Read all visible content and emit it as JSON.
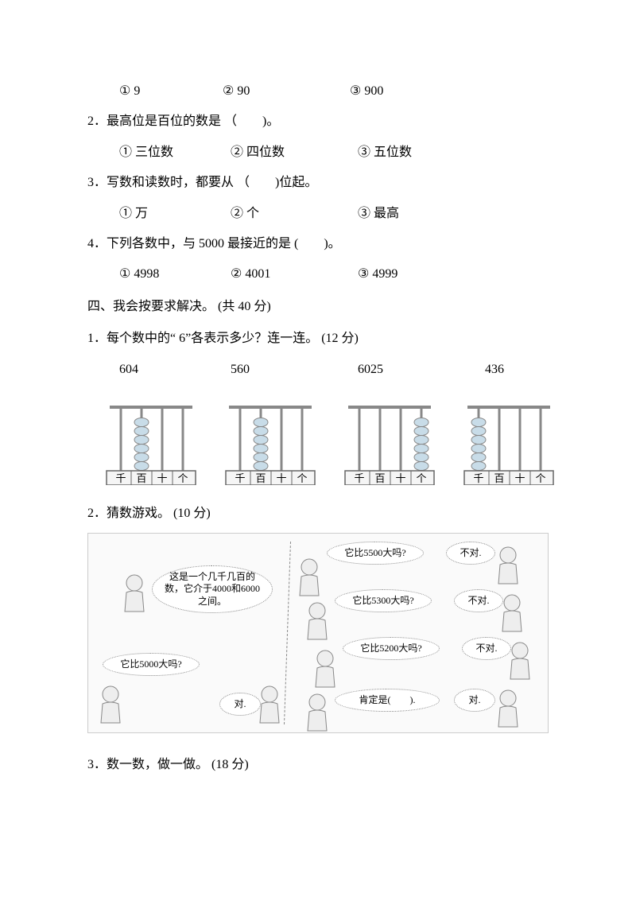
{
  "q1_choices": {
    "c1": "①  9",
    "c2": "②  90",
    "c3": "③  900",
    "w1": "130px",
    "w2": "160px",
    "w3": "120px"
  },
  "q2": {
    "text": "2．最高位是百位的数是 （　　)。",
    "choices": {
      "c1": "①  三位数",
      "c2": "②  四位数",
      "c3": "③  五位数",
      "w1": "140px",
      "w2": "160px",
      "w3": "120px"
    }
  },
  "q3": {
    "text": "3．写数和读数时，都要从 （　　)位起。",
    "choices": {
      "c1": "①  万",
      "c2": "②  个",
      "c3": "③  最高",
      "w1": "140px",
      "w2": "160px",
      "w3": "120px"
    }
  },
  "q4": {
    "text": "4．下列各数中，与   5000 最接近的是 (　　)。",
    "choices": {
      "c1": "①  4998",
      "c2": "②  4001",
      "c3": "③  4999",
      "w1": "140px",
      "w2": "160px",
      "w3": "120px"
    }
  },
  "section4": {
    "header": "四、我会按要求解决。  (共 40 分)"
  },
  "s4q1": {
    "text": "1．每个数中的“ 6”各表示多少？连一连。  (12 分)",
    "numbers": {
      "n1": "604",
      "n2": "560",
      "n3": "6025",
      "n4": "436",
      "w1": "140px",
      "w2": "160px",
      "w3": "160px",
      "w4": "60px"
    }
  },
  "abacus": {
    "labels": [
      "千",
      "百",
      "十",
      "个"
    ],
    "rod_color": "#888888",
    "bead_fill": "#c8dce8",
    "bead_stroke": "#888888",
    "frame_fill": "#f5f5f5",
    "frame_stroke": "#666666",
    "items": [
      {
        "beads": [
          0,
          6,
          0,
          0
        ]
      },
      {
        "beads": [
          0,
          6,
          0,
          0
        ]
      },
      {
        "beads": [
          0,
          0,
          0,
          6
        ]
      },
      {
        "beads": [
          6,
          0,
          0,
          0
        ]
      }
    ]
  },
  "s4q2": {
    "text": "2．猜数游戏。  (10 分)",
    "bubbles": {
      "intro": "这是一个几千几百的数，它介于4000和6000之间。",
      "b1": "它比5000大吗?",
      "ans1": "对.",
      "b2": "它比5500大吗?",
      "ans2": "不对.",
      "b3": "它比5300大吗?",
      "ans3": "不对.",
      "b4": "它比5200大吗?",
      "ans4": "不对.",
      "b5": "肯定是(　　).",
      "ans5": "对."
    }
  },
  "s4q3": {
    "text": "3．数一数，做一做。  (18 分)"
  }
}
